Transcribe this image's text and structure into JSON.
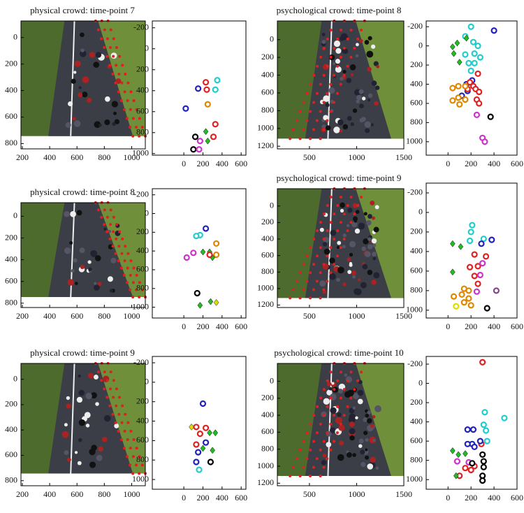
{
  "chart_data": [
    {
      "type": "image",
      "title": "physical crowd: time-point 7",
      "xlim": [
        190,
        1100
      ],
      "ylim": [
        -125,
        840
      ],
      "xticks": [
        200,
        400,
        600,
        800,
        1000
      ],
      "yticks": [
        0,
        200,
        400,
        600,
        800
      ]
    },
    {
      "type": "scatter",
      "xlim": [
        -330,
        650
      ],
      "ylim": [
        -265,
        1015
      ],
      "xticks": [
        0,
        200,
        400,
        600
      ],
      "yticks": [
        -200,
        0,
        200,
        400,
        600,
        800,
        1000
      ],
      "series": [
        {
          "color": "#22cccc",
          "marker": "ring",
          "x": [
            350,
            330
          ],
          "y": [
            300,
            390
          ]
        },
        {
          "color": "#dd2222",
          "marker": "ring",
          "x": [
            230,
            240,
            330,
            310
          ],
          "y": [
            320,
            390,
            720,
            840
          ]
        },
        {
          "color": "#2222bb",
          "marker": "ring",
          "x": [
            150,
            20
          ],
          "y": [
            380,
            570
          ]
        },
        {
          "color": "#dd8800",
          "marker": "ring",
          "x": [
            250
          ],
          "y": [
            530
          ]
        },
        {
          "color": "#22bb22",
          "marker": "diamond",
          "x": [
            230,
            250
          ],
          "y": [
            790,
            880
          ]
        },
        {
          "color": "#000000",
          "marker": "ring",
          "x": [
            120,
            100
          ],
          "y": [
            840,
            960
          ]
        },
        {
          "color": "#cc33cc",
          "marker": "ring",
          "x": [
            170,
            160
          ],
          "y": [
            880,
            960
          ]
        }
      ]
    },
    {
      "type": "image",
      "title": "psychological crowd: time-point 8",
      "xlim": [
        160,
        1500
      ],
      "ylim": [
        -210,
        1230
      ],
      "xticks": [
        500,
        1000,
        1500
      ],
      "yticks": [
        0,
        200,
        400,
        600,
        800,
        1000,
        1200
      ]
    },
    {
      "type": "scatter",
      "xlim": [
        -190,
        600
      ],
      "ylim": [
        -260,
        1140
      ],
      "xticks": [
        0,
        200,
        400,
        600
      ],
      "yticks": [
        -200,
        0,
        200,
        400,
        600,
        800,
        1000
      ],
      "series": [
        {
          "color": "#22cccc",
          "marker": "ring",
          "x": [
            200,
            150,
            220,
            260,
            230,
            150,
            280,
            230,
            180,
            200
          ],
          "y": [
            -200,
            -100,
            -40,
            0,
            80,
            90,
            120,
            180,
            180,
            260
          ]
        },
        {
          "color": "#2222bb",
          "marker": "ring",
          "x": [
            400,
            210,
            160,
            170,
            120
          ],
          "y": [
            -160,
            360,
            400,
            470,
            520
          ]
        },
        {
          "color": "#22bb22",
          "marker": "diamond",
          "x": [
            40,
            80,
            160,
            50,
            100
          ],
          "y": [
            10,
            -30,
            -80,
            80,
            170
          ]
        },
        {
          "color": "#dd2222",
          "marker": "ring",
          "x": [
            260,
            190,
            220,
            170,
            240,
            270,
            250,
            270
          ],
          "y": [
            290,
            380,
            420,
            450,
            450,
            480,
            560,
            600
          ]
        },
        {
          "color": "#dd8800",
          "marker": "ring",
          "x": [
            40,
            90,
            150,
            90,
            150,
            40,
            100
          ],
          "y": [
            440,
            420,
            420,
            540,
            560,
            570,
            610
          ]
        },
        {
          "color": "#cc33cc",
          "marker": "ring",
          "x": [
            250,
            300,
            320
          ],
          "y": [
            720,
            960,
            1000
          ]
        },
        {
          "color": "#000000",
          "marker": "ring",
          "x": [
            370
          ],
          "y": [
            740
          ]
        }
      ]
    },
    {
      "type": "image",
      "title": "physical crowd: time-point 8",
      "xlim": [
        190,
        1100
      ],
      "ylim": [
        -125,
        840
      ],
      "xticks": [
        200,
        400,
        600,
        800,
        1000
      ],
      "yticks": [
        0,
        200,
        400,
        600,
        800
      ]
    },
    {
      "type": "scatter",
      "xlim": [
        -330,
        650
      ],
      "ylim": [
        -265,
        1115
      ],
      "xticks": [
        0,
        200,
        400,
        600
      ],
      "yticks": [
        -200,
        0,
        200,
        400,
        600,
        800,
        1000
      ],
      "series": [
        {
          "color": "#2222bb",
          "marker": "ring",
          "x": [
            230
          ],
          "y": [
            160
          ]
        },
        {
          "color": "#22cccc",
          "marker": "ring",
          "x": [
            170,
            130
          ],
          "y": [
            230,
            240
          ]
        },
        {
          "color": "#dd8800",
          "marker": "ring",
          "x": [
            340,
            340
          ],
          "y": [
            320,
            440
          ]
        },
        {
          "color": "#cc33cc",
          "marker": "ring",
          "x": [
            30,
            100
          ],
          "y": [
            470,
            420
          ]
        },
        {
          "color": "#22bb22",
          "marker": "diamond",
          "x": [
            200,
            270,
            300,
            170,
            280
          ],
          "y": [
            410,
            410,
            470,
            980,
            940
          ]
        },
        {
          "color": "#000000",
          "marker": "ring",
          "x": [
            140
          ],
          "y": [
            850
          ]
        },
        {
          "color": "#dd2222",
          "marker": "ring",
          "x": [
            270
          ],
          "y": [
            440
          ]
        },
        {
          "color": "#dddd00",
          "marker": "diamond",
          "x": [
            340
          ],
          "y": [
            950
          ]
        }
      ]
    },
    {
      "type": "image",
      "title": "psychological crowd: time-point 9",
      "xlim": [
        160,
        1500
      ],
      "ylim": [
        -210,
        1230
      ],
      "xticks": [
        500,
        1000,
        1500
      ],
      "yticks": [
        0,
        200,
        400,
        600,
        800,
        1000,
        1200
      ]
    },
    {
      "type": "scatter",
      "xlim": [
        -190,
        600
      ],
      "ylim": [
        -300,
        1080
      ],
      "xticks": [
        0,
        200,
        400,
        600
      ],
      "yticks": [
        -200,
        0,
        200,
        400,
        600,
        800,
        1000
      ],
      "series": [
        {
          "color": "#22cccc",
          "marker": "ring",
          "x": [
            210,
            200,
            190,
            310
          ],
          "y": [
            130,
            200,
            290,
            270
          ]
        },
        {
          "color": "#2222bb",
          "marker": "ring",
          "x": [
            380,
            290
          ],
          "y": [
            280,
            320
          ]
        },
        {
          "color": "#22bb22",
          "marker": "diamond",
          "x": [
            40,
            110,
            40
          ],
          "y": [
            320,
            350,
            610
          ]
        },
        {
          "color": "#dd2222",
          "marker": "ring",
          "x": [
            230,
            330,
            190,
            260,
            230,
            260
          ],
          "y": [
            430,
            450,
            560,
            550,
            650,
            730
          ]
        },
        {
          "color": "#cc33cc",
          "marker": "ring",
          "x": [
            300,
            280,
            250
          ],
          "y": [
            520,
            640,
            810
          ]
        },
        {
          "color": "#dd8800",
          "marker": "ring",
          "x": [
            50,
            120,
            140,
            180,
            180,
            140,
            200
          ],
          "y": [
            860,
            840,
            780,
            800,
            880,
            920,
            950
          ]
        },
        {
          "color": "#dddd00",
          "marker": "ring",
          "x": [
            70
          ],
          "y": [
            960
          ]
        },
        {
          "color": "#884488",
          "marker": "ring",
          "x": [
            420
          ],
          "y": [
            800
          ]
        },
        {
          "color": "#000000",
          "marker": "ring",
          "x": [
            340
          ],
          "y": [
            980
          ]
        }
      ]
    },
    {
      "type": "image",
      "title": "physical crowd: time-point 9",
      "xlim": [
        190,
        1100
      ],
      "ylim": [
        -125,
        840
      ],
      "xticks": [
        200,
        400,
        600,
        800,
        1000
      ],
      "yticks": [
        0,
        200,
        400,
        600,
        800
      ]
    },
    {
      "type": "scatter",
      "xlim": [
        -330,
        650
      ],
      "ylim": [
        -265,
        1100
      ],
      "xticks": [
        0,
        200,
        400,
        600
      ],
      "yticks": [
        -200,
        0,
        200,
        400,
        600,
        800,
        1000
      ],
      "series": [
        {
          "color": "#2222bb",
          "marker": "ring",
          "x": [
            200,
            230,
            150,
            130
          ],
          "y": [
            220,
            620,
            720,
            820
          ]
        },
        {
          "color": "#dddd00",
          "marker": "diamond",
          "x": [
            80
          ],
          "y": [
            460
          ]
        },
        {
          "color": "#dd2222",
          "marker": "ring",
          "x": [
            130,
            230,
            170,
            130
          ],
          "y": [
            460,
            470,
            530,
            640
          ]
        },
        {
          "color": "#22bb22",
          "marker": "diamond",
          "x": [
            270,
            330,
            300,
            200
          ],
          "y": [
            520,
            520,
            700,
            680
          ]
        },
        {
          "color": "#000000",
          "marker": "ring",
          "x": [
            280
          ],
          "y": [
            820
          ]
        },
        {
          "color": "#22cccc",
          "marker": "ring",
          "x": [
            160
          ],
          "y": [
            900
          ]
        }
      ]
    },
    {
      "type": "image",
      "title": "psychological crowd: time-point 10",
      "xlim": [
        160,
        1500
      ],
      "ylim": [
        -210,
        1230
      ],
      "xticks": [
        500,
        1000,
        1500
      ],
      "yticks": [
        0,
        200,
        400,
        600,
        800,
        1000,
        1200
      ]
    },
    {
      "type": "scatter",
      "xlim": [
        -190,
        600
      ],
      "ylim": [
        -280,
        1100
      ],
      "xticks": [
        0,
        200,
        400,
        600
      ],
      "yticks": [
        -200,
        0,
        200,
        400,
        600,
        800,
        1000
      ],
      "series": [
        {
          "color": "#dd2222",
          "marker": "ring",
          "x": [
            300,
            290,
            230,
            150,
            100,
            200
          ],
          "y": [
            -220,
            630,
            860,
            880,
            960,
            900
          ]
        },
        {
          "color": "#22cccc",
          "marker": "ring",
          "x": [
            320,
            490,
            310,
            330,
            340
          ],
          "y": [
            300,
            360,
            430,
            490,
            600
          ]
        },
        {
          "color": "#2222bb",
          "marker": "ring",
          "x": [
            170,
            220,
            210,
            170,
            230,
            280
          ],
          "y": [
            480,
            480,
            630,
            630,
            660,
            600
          ]
        },
        {
          "color": "#22bb22",
          "marker": "diamond",
          "x": [
            40,
            90,
            150,
            70
          ],
          "y": [
            700,
            740,
            730,
            960
          ]
        },
        {
          "color": "#cc33cc",
          "marker": "ring",
          "x": [
            80,
            180
          ],
          "y": [
            810,
            820
          ]
        },
        {
          "color": "#000000",
          "marker": "ring",
          "x": [
            300,
            310,
            310,
            300,
            300,
            210
          ],
          "y": [
            740,
            810,
            870,
            960,
            1010,
            830
          ]
        }
      ]
    }
  ]
}
